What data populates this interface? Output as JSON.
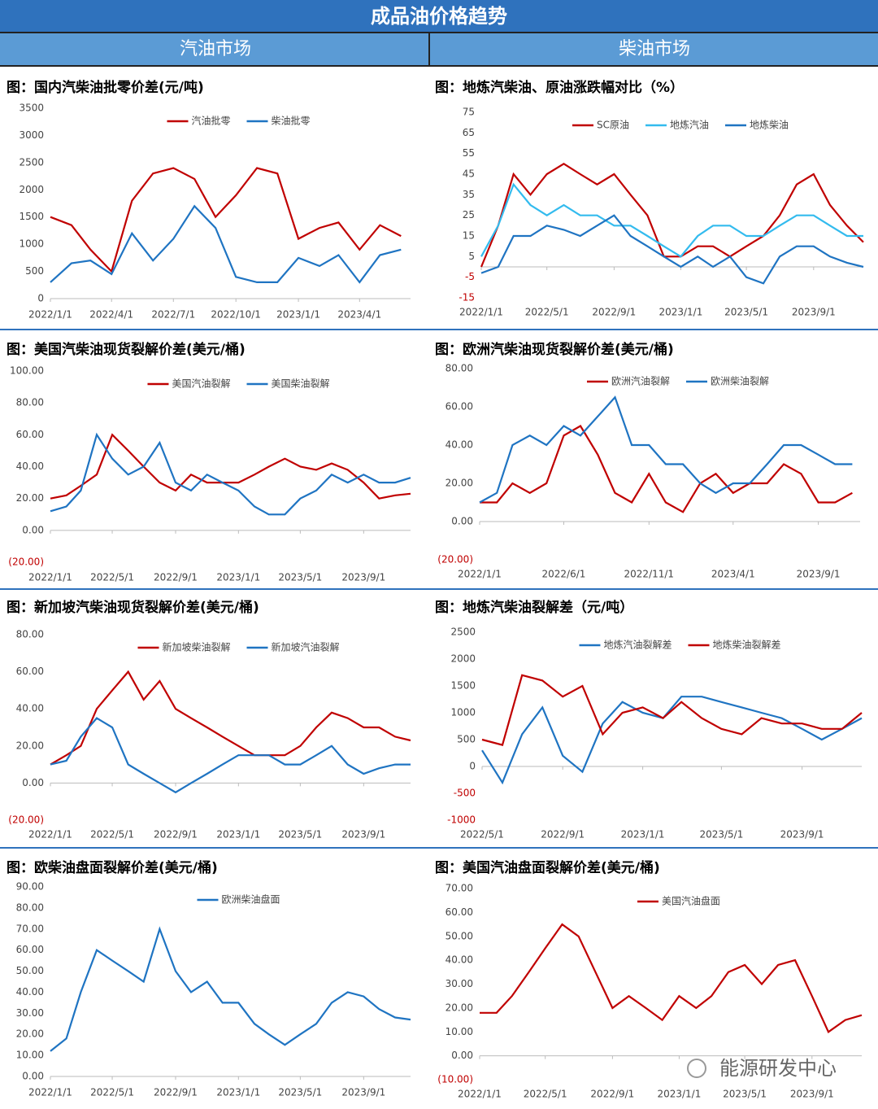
{
  "header": {
    "title": "成品油价格趋势",
    "left": "汽油市场",
    "right": "柴油市场"
  },
  "watermark": "能源研发中心",
  "chart_data": [
    {
      "type": "line",
      "title": "图：国内汽柴油批零价差(元/吨)",
      "x": [
        "2022/1/1",
        "2022/2/1",
        "2022/3/1",
        "2022/4/1",
        "2022/5/1",
        "2022/6/1",
        "2022/7/1",
        "2022/8/1",
        "2022/9/1",
        "2022/10/1",
        "2022/11/1",
        "2022/12/1",
        "2023/1/1",
        "2023/2/1",
        "2023/3/1",
        "2023/4/1",
        "2023/5/1",
        "2023/6/1"
      ],
      "xlim": [
        "2022/1/1",
        "2023/6/15"
      ],
      "xticks": [
        "2022/1/1",
        "2022/4/1",
        "2022/7/1",
        "2022/10/1",
        "2023/1/1",
        "2023/4/1"
      ],
      "ylim": [
        0,
        3500
      ],
      "yticks": [
        0,
        500,
        1000,
        1500,
        2000,
        2500,
        3000,
        3500
      ],
      "series": [
        {
          "name": "汽油批零",
          "color": "#c00000",
          "values": [
            1500,
            1350,
            900,
            500,
            1800,
            2300,
            2400,
            2200,
            1500,
            1900,
            2400,
            2300,
            1100,
            1300,
            1400,
            900,
            1350,
            1150
          ]
        },
        {
          "name": "柴油批零",
          "color": "#1f74c2",
          "values": [
            300,
            650,
            700,
            450,
            1200,
            700,
            1100,
            1700,
            1300,
            400,
            300,
            300,
            750,
            600,
            800,
            300,
            800,
            900
          ]
        }
      ]
    },
    {
      "type": "line",
      "title": "图：地炼汽柴油、原油涨跌幅对比（%）",
      "x": [
        "2022/1/1",
        "2022/2/1",
        "2022/3/1",
        "2022/4/1",
        "2022/5/1",
        "2022/6/1",
        "2022/7/1",
        "2022/8/1",
        "2022/9/1",
        "2022/10/1",
        "2022/11/1",
        "2022/12/1",
        "2023/1/1",
        "2023/2/1",
        "2023/3/1",
        "2023/4/1",
        "2023/5/1",
        "2023/6/1",
        "2023/7/1",
        "2023/8/1",
        "2023/9/1",
        "2023/10/1",
        "2023/11/1",
        "2023/12/1"
      ],
      "xlim": [
        "2022/1/1",
        "2023/12/1"
      ],
      "xticks": [
        "2022/1/1",
        "2022/5/1",
        "2022/9/1",
        "2023/1/1",
        "2023/5/1",
        "2023/9/1"
      ],
      "ylim": [
        -15,
        75
      ],
      "yticks": [
        -15,
        -5,
        5,
        15,
        25,
        35,
        45,
        55,
        65,
        75
      ],
      "series": [
        {
          "name": "SC原油",
          "color": "#c00000",
          "values": [
            0,
            20,
            45,
            35,
            45,
            50,
            45,
            40,
            45,
            35,
            25,
            5,
            5,
            10,
            10,
            5,
            10,
            15,
            25,
            40,
            45,
            30,
            20,
            12
          ]
        },
        {
          "name": "地炼汽油",
          "color": "#33bbee",
          "values": [
            5,
            20,
            40,
            30,
            25,
            30,
            25,
            25,
            20,
            20,
            15,
            10,
            5,
            15,
            20,
            20,
            15,
            15,
            20,
            25,
            25,
            20,
            15,
            15
          ]
        },
        {
          "name": "地炼柴油",
          "color": "#1f74c2",
          "values": [
            -3,
            0,
            15,
            15,
            20,
            18,
            15,
            20,
            25,
            15,
            10,
            5,
            0,
            5,
            0,
            5,
            -5,
            -8,
            5,
            10,
            10,
            5,
            2,
            0
          ]
        }
      ]
    },
    {
      "type": "line",
      "title": "图：美国汽柴油现货裂解价差(美元/桶)",
      "x": [
        "2022/1/1",
        "2022/2/1",
        "2022/3/1",
        "2022/4/1",
        "2022/5/1",
        "2022/6/1",
        "2022/7/1",
        "2022/8/1",
        "2022/9/1",
        "2022/10/1",
        "2022/11/1",
        "2022/12/1",
        "2023/1/1",
        "2023/2/1",
        "2023/3/1",
        "2023/4/1",
        "2023/5/1",
        "2023/6/1",
        "2023/7/1",
        "2023/8/1",
        "2023/9/1",
        "2023/10/1",
        "2023/11/1",
        "2023/12/1"
      ],
      "xlim": [
        "2022/1/1",
        "2023/12/1"
      ],
      "xticks": [
        "2022/1/1",
        "2022/5/1",
        "2022/9/1",
        "2023/1/1",
        "2023/5/1",
        "2023/9/1"
      ],
      "ylim": [
        -20,
        100
      ],
      "yticks": [
        {
          "value": -20,
          "label": "(20.00)"
        },
        {
          "value": 0,
          "label": "0.00"
        },
        {
          "value": 20,
          "label": "20.00"
        },
        {
          "value": 40,
          "label": "40.00"
        },
        {
          "value": 60,
          "label": "60.00"
        },
        {
          "value": 80,
          "label": "80.00"
        },
        {
          "value": 100,
          "label": "100.00"
        }
      ],
      "series": [
        {
          "name": "美国汽油裂解",
          "color": "#c00000",
          "values": [
            20,
            22,
            28,
            35,
            60,
            50,
            40,
            30,
            25,
            35,
            30,
            30,
            30,
            35,
            40,
            45,
            40,
            38,
            42,
            38,
            30,
            20,
            22,
            23
          ]
        },
        {
          "name": "美国柴油裂解",
          "color": "#1f74c2",
          "values": [
            12,
            15,
            25,
            60,
            45,
            35,
            40,
            55,
            30,
            25,
            35,
            30,
            25,
            15,
            10,
            10,
            20,
            25,
            35,
            30,
            35,
            30,
            30,
            33
          ]
        }
      ]
    },
    {
      "type": "line",
      "title": "图：欧洲汽柴油现货裂解价差(美元/桶)",
      "x": [
        "2022/1/1",
        "2022/2/1",
        "2022/3/1",
        "2022/4/1",
        "2022/5/1",
        "2022/6/1",
        "2022/7/1",
        "2022/8/1",
        "2022/9/1",
        "2022/10/1",
        "2022/11/1",
        "2022/12/1",
        "2023/1/1",
        "2023/2/1",
        "2023/3/1",
        "2023/4/1",
        "2023/5/1",
        "2023/6/1",
        "2023/7/1",
        "2023/8/1",
        "2023/9/1",
        "2023/10/1",
        "2023/11/1"
      ],
      "xlim": [
        "2022/1/1",
        "2023/11/15"
      ],
      "xticks": [
        "2022/1/1",
        "2022/6/1",
        "2022/11/1",
        "2023/4/1",
        "2023/9/1"
      ],
      "ylim": [
        -20,
        80
      ],
      "yticks": [
        {
          "value": -20,
          "label": "(20.00)"
        },
        {
          "value": 0,
          "label": "0.00"
        },
        {
          "value": 20,
          "label": "20.00"
        },
        {
          "value": 40,
          "label": "40.00"
        },
        {
          "value": 60,
          "label": "60.00"
        },
        {
          "value": 80,
          "label": "80.00"
        }
      ],
      "series": [
        {
          "name": "欧洲汽油裂解",
          "color": "#c00000",
          "values": [
            10,
            10,
            20,
            15,
            20,
            45,
            50,
            35,
            15,
            10,
            25,
            10,
            5,
            20,
            25,
            15,
            20,
            20,
            30,
            25,
            10,
            10,
            15
          ]
        },
        {
          "name": "欧洲柴油裂解",
          "color": "#1f74c2",
          "values": [
            10,
            15,
            40,
            45,
            40,
            50,
            45,
            55,
            65,
            40,
            40,
            30,
            30,
            20,
            15,
            20,
            20,
            30,
            40,
            40,
            35,
            30,
            30
          ]
        }
      ]
    },
    {
      "type": "line",
      "title": "图：新加坡汽柴油现货裂解价差(美元/桶)",
      "x": [
        "2022/1/1",
        "2022/2/1",
        "2022/3/1",
        "2022/4/1",
        "2022/5/1",
        "2022/6/1",
        "2022/7/1",
        "2022/8/1",
        "2022/9/1",
        "2022/10/1",
        "2022/11/1",
        "2022/12/1",
        "2023/1/1",
        "2023/2/1",
        "2023/3/1",
        "2023/4/1",
        "2023/5/1",
        "2023/6/1",
        "2023/7/1",
        "2023/8/1",
        "2023/9/1",
        "2023/10/1",
        "2023/11/1",
        "2023/12/1"
      ],
      "xlim": [
        "2022/1/1",
        "2023/12/1"
      ],
      "xticks": [
        "2022/1/1",
        "2022/5/1",
        "2022/9/1",
        "2023/1/1",
        "2023/5/1",
        "2023/9/1"
      ],
      "ylim": [
        -20,
        80
      ],
      "yticks": [
        {
          "value": -20,
          "label": "(20.00)"
        },
        {
          "value": 0,
          "label": "0.00"
        },
        {
          "value": 20,
          "label": "20.00"
        },
        {
          "value": 40,
          "label": "40.00"
        },
        {
          "value": 60,
          "label": "60.00"
        },
        {
          "value": 80,
          "label": "80.00"
        }
      ],
      "series": [
        {
          "name": "新加坡柴油裂解",
          "color": "#c00000",
          "values": [
            10,
            15,
            20,
            40,
            50,
            60,
            45,
            55,
            40,
            35,
            30,
            25,
            20,
            15,
            15,
            15,
            20,
            30,
            38,
            35,
            30,
            30,
            25,
            23
          ]
        },
        {
          "name": "新加坡汽油裂解",
          "color": "#1f74c2",
          "values": [
            10,
            12,
            25,
            35,
            30,
            10,
            5,
            0,
            -5,
            0,
            5,
            10,
            15,
            15,
            15,
            10,
            10,
            15,
            20,
            10,
            5,
            8,
            10,
            10
          ]
        }
      ]
    },
    {
      "type": "line",
      "title": "图：地炼汽柴油裂解差（元/吨）",
      "x": [
        "2022/5/1",
        "2022/6/1",
        "2022/7/1",
        "2022/8/1",
        "2022/9/1",
        "2022/10/1",
        "2022/11/1",
        "2022/12/1",
        "2023/1/1",
        "2023/2/1",
        "2023/3/1",
        "2023/4/1",
        "2023/5/1",
        "2023/6/1",
        "2023/7/1",
        "2023/8/1",
        "2023/9/1",
        "2023/10/1",
        "2023/11/1",
        "2023/12/1"
      ],
      "xlim": [
        "2022/5/1",
        "2023/12/1"
      ],
      "xticks": [
        "2022/5/1",
        "2022/9/1",
        "2023/1/1",
        "2023/5/1",
        "2023/9/1"
      ],
      "ylim": [
        -1000,
        2500
      ],
      "yticks": [
        -1000,
        -500,
        0,
        500,
        1000,
        1500,
        2000,
        2500
      ],
      "series": [
        {
          "name": "地炼汽油裂解差",
          "color": "#1f74c2",
          "values": [
            300,
            -300,
            600,
            1100,
            200,
            -100,
            800,
            1200,
            1000,
            900,
            1300,
            1300,
            1200,
            1100,
            1000,
            900,
            700,
            500,
            700,
            900
          ]
        },
        {
          "name": "地炼柴油裂解差",
          "color": "#c00000",
          "values": [
            500,
            400,
            1700,
            1600,
            1300,
            1500,
            600,
            1000,
            1100,
            900,
            1200,
            900,
            700,
            600,
            900,
            800,
            800,
            700,
            700,
            1000
          ]
        }
      ]
    },
    {
      "type": "line",
      "title": "图：欧柴油盘面裂解价差(美元/桶)",
      "x": [
        "2022/1/1",
        "2022/2/1",
        "2022/3/1",
        "2022/4/1",
        "2022/5/1",
        "2022/6/1",
        "2022/7/1",
        "2022/8/1",
        "2022/9/1",
        "2022/10/1",
        "2022/11/1",
        "2022/12/1",
        "2023/1/1",
        "2023/2/1",
        "2023/3/1",
        "2023/4/1",
        "2023/5/1",
        "2023/6/1",
        "2023/7/1",
        "2023/8/1",
        "2023/9/1",
        "2023/10/1",
        "2023/11/1",
        "2023/12/1"
      ],
      "xlim": [
        "2022/1/1",
        "2023/12/1"
      ],
      "xticks": [
        "2022/1/1",
        "2022/5/1",
        "2022/9/1",
        "2023/1/1",
        "2023/5/1",
        "2023/9/1"
      ],
      "ylim": [
        0,
        90
      ],
      "yticks": [
        {
          "value": 0,
          "label": "0.00"
        },
        {
          "value": 10,
          "label": "10.00"
        },
        {
          "value": 20,
          "label": "20.00"
        },
        {
          "value": 30,
          "label": "30.00"
        },
        {
          "value": 40,
          "label": "40.00"
        },
        {
          "value": 50,
          "label": "50.00"
        },
        {
          "value": 60,
          "label": "60.00"
        },
        {
          "value": 70,
          "label": "70.00"
        },
        {
          "value": 80,
          "label": "80.00"
        },
        {
          "value": 90,
          "label": "90.00"
        }
      ],
      "series": [
        {
          "name": "欧洲柴油盘面",
          "color": "#1f74c2",
          "values": [
            12,
            18,
            40,
            60,
            55,
            50,
            45,
            70,
            50,
            40,
            45,
            35,
            35,
            25,
            20,
            15,
            20,
            25,
            35,
            40,
            38,
            32,
            28,
            27
          ]
        }
      ]
    },
    {
      "type": "line",
      "title": "图：美国汽油盘面裂解价差(美元/桶)",
      "x": [
        "2022/1/1",
        "2022/2/1",
        "2022/3/1",
        "2022/4/1",
        "2022/5/1",
        "2022/6/1",
        "2022/7/1",
        "2022/8/1",
        "2022/9/1",
        "2022/10/1",
        "2022/11/1",
        "2022/12/1",
        "2023/1/1",
        "2023/2/1",
        "2023/3/1",
        "2023/4/1",
        "2023/5/1",
        "2023/6/1",
        "2023/7/1",
        "2023/8/1",
        "2023/9/1",
        "2023/10/1",
        "2023/11/1",
        "2023/12/1"
      ],
      "xlim": [
        "2022/1/1",
        "2023/12/1"
      ],
      "xticks": [
        "2022/1/1",
        "2022/5/1",
        "2022/9/1",
        "2023/1/1",
        "2023/5/1",
        "2023/9/1"
      ],
      "ylim": [
        -10,
        70
      ],
      "yticks": [
        {
          "value": -10,
          "label": "(10.00)"
        },
        {
          "value": 0,
          "label": "0.00"
        },
        {
          "value": 10,
          "label": "10.00"
        },
        {
          "value": 20,
          "label": "20.00"
        },
        {
          "value": 30,
          "label": "30.00"
        },
        {
          "value": 40,
          "label": "40.00"
        },
        {
          "value": 50,
          "label": "50.00"
        },
        {
          "value": 60,
          "label": "60.00"
        },
        {
          "value": 70,
          "label": "70.00"
        }
      ],
      "series": [
        {
          "name": "美国汽油盘面",
          "color": "#c00000",
          "values": [
            18,
            18,
            25,
            35,
            45,
            55,
            50,
            35,
            20,
            25,
            20,
            15,
            25,
            20,
            25,
            35,
            38,
            30,
            38,
            40,
            25,
            10,
            15,
            17
          ]
        }
      ]
    }
  ]
}
